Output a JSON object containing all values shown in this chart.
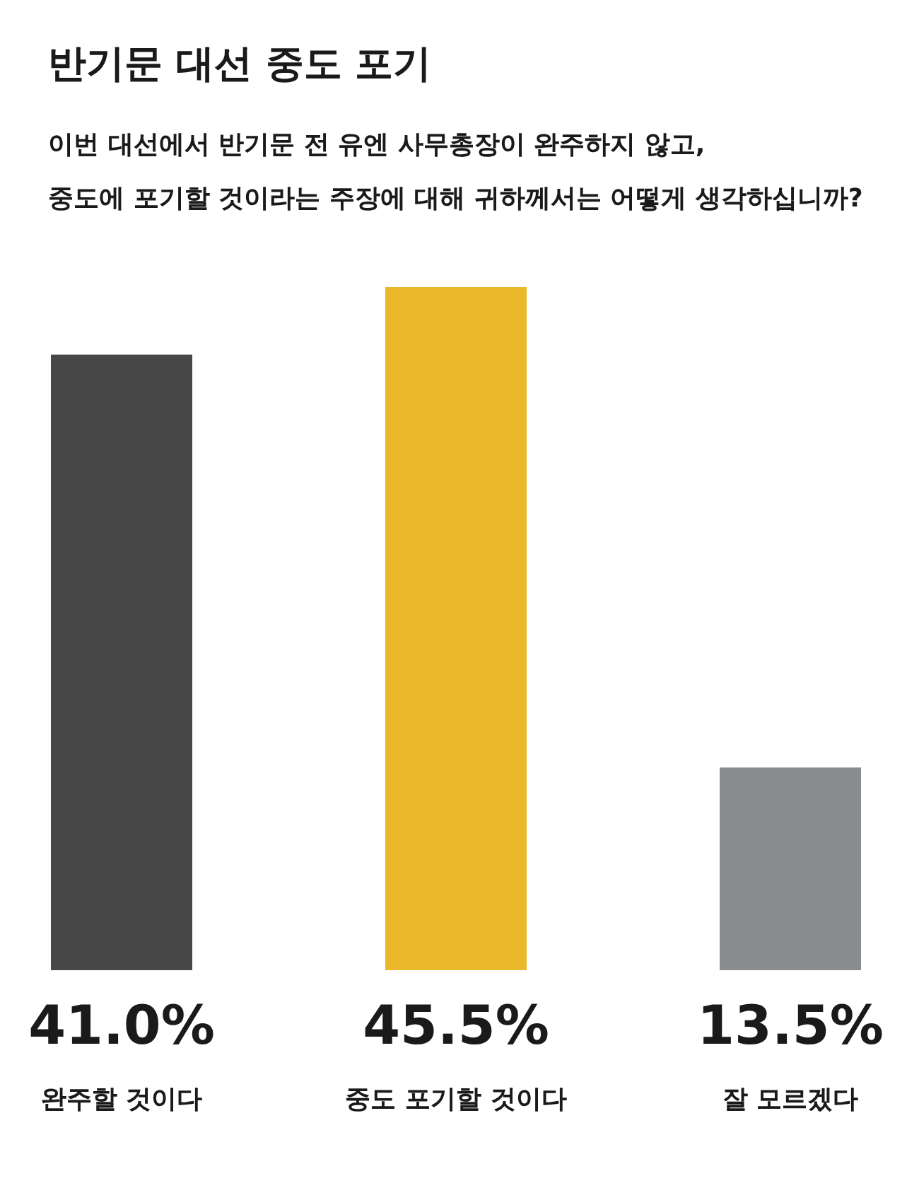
{
  "chart_data": {
    "type": "bar",
    "title": "반기문 대선 중도 포기",
    "subtitle": "이번 대선에서 반기문 전 유엔 사무총장이 완주하지 않고,\n중도에 포기할 것이라는 주장에 대해 귀하께서는 어떻게 생각하십니까?",
    "categories": [
      "완주할 것이다",
      "중도 포기할 것이다",
      "잘 모르겠다"
    ],
    "values": [
      41.0,
      45.5,
      13.5
    ],
    "value_labels": [
      "41.0%",
      "45.5%",
      "13.5%"
    ],
    "colors": [
      "#474747",
      "#ebb82b",
      "#8a8c8e"
    ]
  }
}
